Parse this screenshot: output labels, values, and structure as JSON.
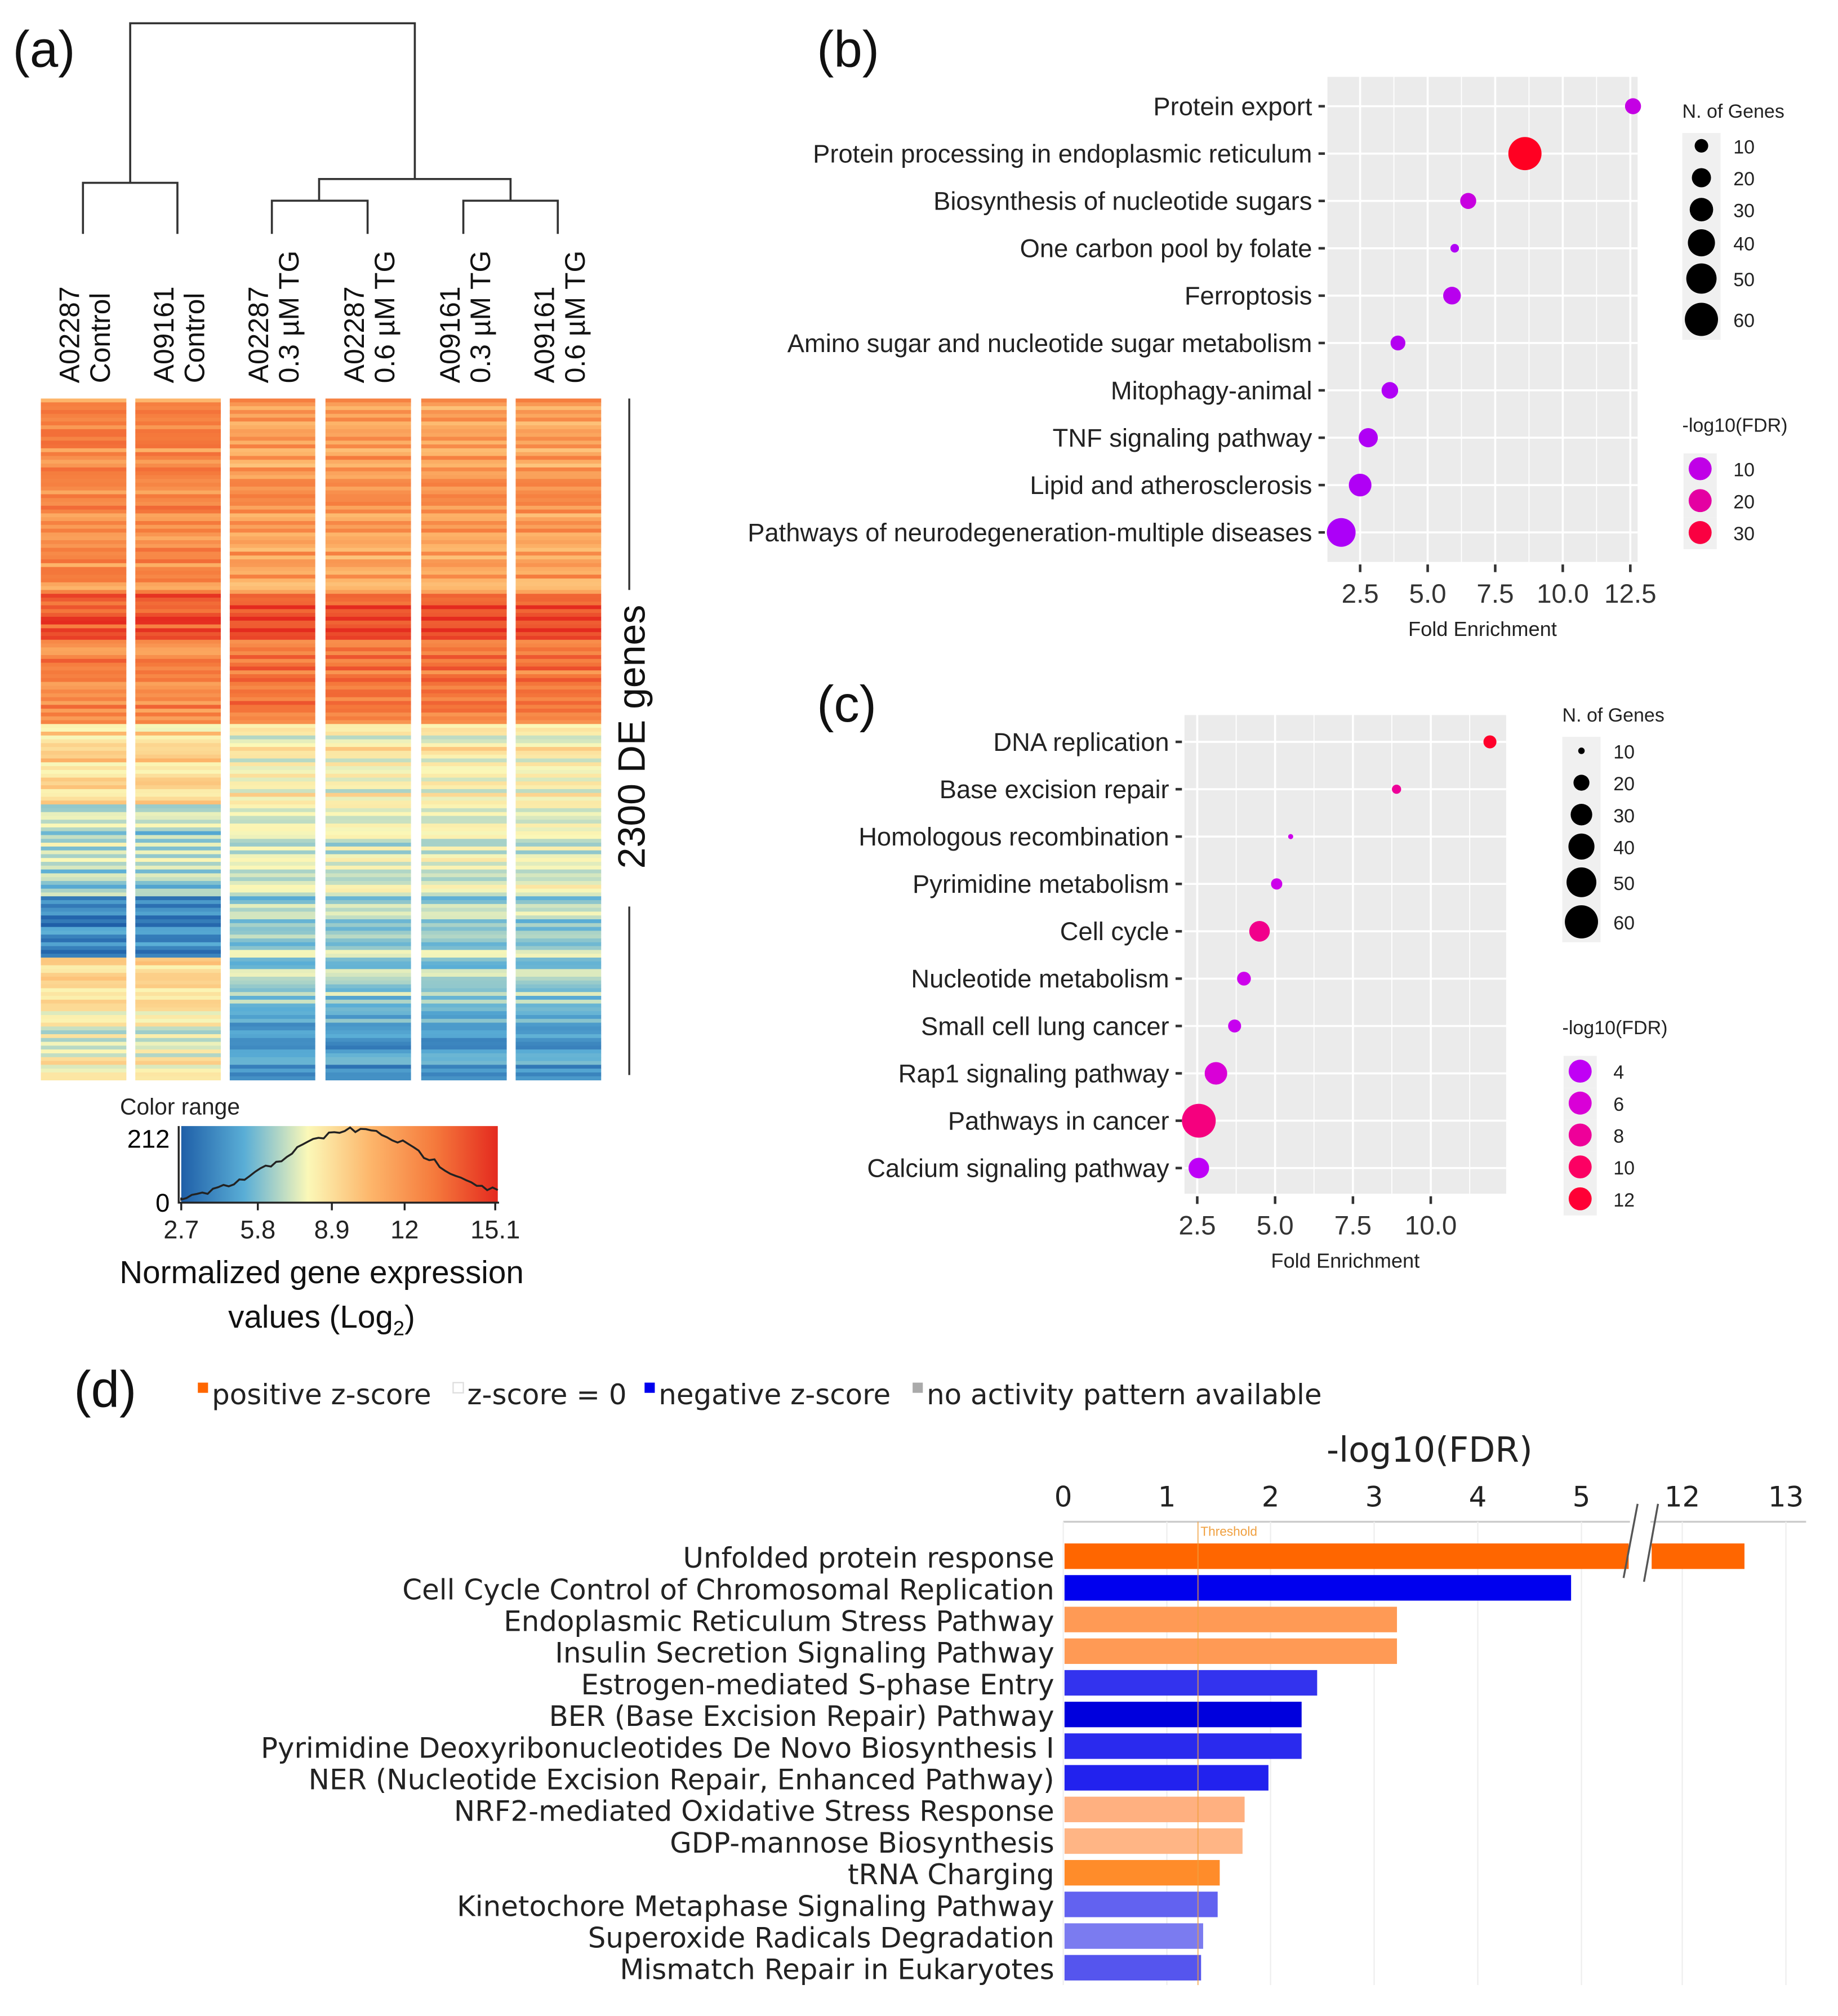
{
  "panel_labels": {
    "a": "(a)",
    "b": "(b)",
    "c": "(c)",
    "d": "(d)"
  },
  "heatmap": {
    "columns": [
      {
        "line1": "A02287",
        "line2": "Control"
      },
      {
        "line1": "A09161",
        "line2": "Control"
      },
      {
        "line1": "A02287",
        "line2": "0.3 µM TG"
      },
      {
        "line1": "A02287",
        "line2": "0.6 µM TG"
      },
      {
        "line1": "A09161",
        "line2": "0.3 µM TG"
      },
      {
        "line1": "A09161",
        "line2": "0.6 µM TG"
      }
    ],
    "side_label": "2300 DE genes",
    "color_range": {
      "title": "Color range",
      "y_ticks": [
        "212",
        "0"
      ],
      "x_ticks": [
        "2.7",
        "5.8",
        "8.9",
        "12",
        "15.1"
      ],
      "xlabel_line1": "Normalized gene expression",
      "xlabel_line2_prefix": "values (Log",
      "xlabel_line2_sub": "2",
      "xlabel_line2_suffix": ")",
      "colors": [
        "#1f5fa8",
        "#5aaed6",
        "#fbf8b8",
        "#fdb56a",
        "#f57a3c",
        "#e42a1f"
      ]
    }
  },
  "chart_data": [
    {
      "panel": "b",
      "type": "scatter",
      "xlabel": "Fold Enrichment",
      "xlim": [
        1.29,
        12.77
      ],
      "x_ticks": [
        "2.5",
        "5.0",
        "7.5",
        "10.0",
        "12.5"
      ],
      "grid": true,
      "categories": [
        "Protein export",
        "Protein processing in endoplasmic reticulum",
        "Biosynthesis of nucleotide sugars",
        "One carbon pool by folate",
        "Ferroptosis",
        "Amino sugar and nucleotide sugar metabolism",
        "Mitophagy-animal",
        "TNF signaling pathway",
        "Lipid and atherosclerosis",
        "Pathways of neurodegeneration-multiple diseases"
      ],
      "fold_enrichment": [
        12.6,
        8.6,
        6.5,
        6.0,
        5.9,
        3.9,
        3.6,
        2.8,
        2.5,
        1.8
      ],
      "n_genes": [
        14,
        60,
        14,
        4,
        17,
        12,
        15,
        20,
        28,
        45
      ],
      "neg_log10_fdr": [
        11,
        35,
        12,
        6,
        8,
        7,
        6,
        6,
        6,
        5
      ],
      "size_legend": {
        "title": "N. of Genes",
        "values": [
          "10",
          "20",
          "30",
          "40",
          "50",
          "60"
        ]
      },
      "color_legend": {
        "title": "-log10(FDR)",
        "values": [
          "10",
          "20",
          "30"
        ],
        "colors": [
          "#a400ff",
          "#cc00dd",
          "#ee0088",
          "#ff0022"
        ]
      },
      "legend_position": "right"
    },
    {
      "panel": "c",
      "type": "scatter",
      "xlabel": "Fold Enrichment",
      "xlim": [
        2.09,
        12.42
      ],
      "x_ticks": [
        "2.5",
        "5.0",
        "7.5",
        "10.0"
      ],
      "grid": true,
      "categories": [
        "DNA replication",
        "Base excision repair",
        "Homologous recombination",
        "Pyrimidine metabolism",
        "Cell cycle",
        "Nucleotide metabolism",
        "Small cell lung cancer",
        "Rap1 signaling pathway",
        "Pathways in cancer",
        "Calcium signaling pathway"
      ],
      "fold_enrichment": [
        11.9,
        8.9,
        5.5,
        5.05,
        4.5,
        4.0,
        3.7,
        3.1,
        2.55,
        2.55
      ],
      "n_genes": [
        16,
        12,
        8,
        14,
        28,
        17,
        16,
        32,
        62,
        28
      ],
      "neg_log10_fdr": [
        12.5,
        8,
        5,
        5,
        8.5,
        5,
        4.5,
        6,
        9,
        3.8
      ],
      "size_legend": {
        "title": "N. of Genes",
        "values": [
          "10",
          "20",
          "30",
          "40",
          "50",
          "60"
        ]
      },
      "color_legend": {
        "title": "-log10(FDR)",
        "values": [
          "4",
          "6",
          "8",
          "10",
          "12"
        ],
        "colors": [
          "#b300ff",
          "#d400e6",
          "#ee0099",
          "#ff0055",
          "#ff0020"
        ]
      },
      "legend_position": "right"
    },
    {
      "panel": "d",
      "type": "bar",
      "orientation": "horizontal",
      "title": "-log10(FDR)",
      "x_ticks": [
        "0",
        "1",
        "2",
        "3",
        "4",
        "5",
        "12",
        "13"
      ],
      "axis_break": [
        5.5,
        11.5
      ],
      "threshold": {
        "label": "Threshold",
        "value": 1.3
      },
      "legend": [
        {
          "label": "positive z-score",
          "color": "#ff6600"
        },
        {
          "label": "z-score = 0",
          "color": "#ffffff"
        },
        {
          "label": "negative z-score",
          "color": "#0000ee"
        },
        {
          "label": "no activity pattern available",
          "color": "#aaaaaa"
        }
      ],
      "legend_position": "top",
      "categories": [
        "Unfolded protein response",
        "Cell Cycle Control of Chromosomal Replication",
        "Endoplasmic Reticulum Stress Pathway",
        "Insulin Secretion Signaling Pathway",
        "Estrogen-mediated S-phase Entry",
        "BER (Base Excision Repair) Pathway",
        "Pyrimidine Deoxyribonucleotides De Novo Biosynthesis I",
        "NER (Nucleotide Excision Repair, Enhanced Pathway)",
        "NRF2-mediated Oxidative Stress Response",
        "GDP-mannose Biosynthesis",
        "tRNA Charging",
        "Kinetochore Metaphase Signaling Pathway",
        "Superoxide Radicals Degradation",
        "Mismatch Repair in Eukaryotes"
      ],
      "values": [
        12.6,
        4.9,
        3.22,
        3.22,
        2.45,
        2.3,
        2.3,
        1.98,
        1.75,
        1.73,
        1.51,
        1.49,
        1.35,
        1.33
      ],
      "colors": [
        "#ff6600",
        "#0000ee",
        "#ff9a55",
        "#ff9a55",
        "#3333ee",
        "#0000dd",
        "#2a2aee",
        "#2222ee",
        "#ffb080",
        "#ffb585",
        "#ff8c2a",
        "#6262f0",
        "#7b7bf0",
        "#5555ee"
      ]
    }
  ]
}
